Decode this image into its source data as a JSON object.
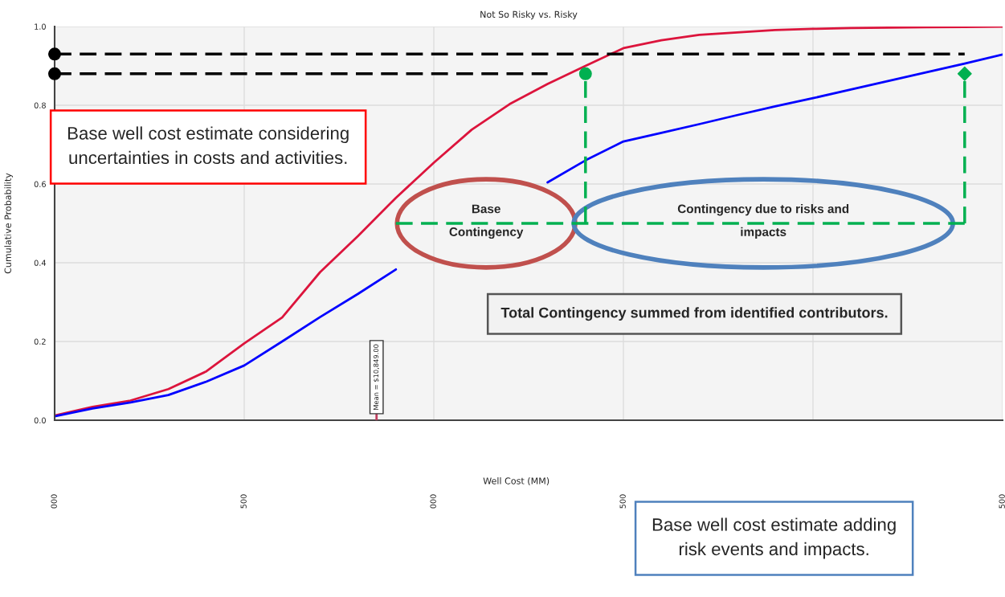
{
  "chart_data": {
    "type": "line",
    "title": "Not So Risky vs. Risky",
    "xlabel": "Well Cost (MM)",
    "ylabel": "Cumulative Probability",
    "categories": [
      "000",
      null,
      null,
      null,
      null,
      "500",
      null,
      null,
      null,
      null,
      "000",
      null,
      null,
      null,
      null,
      "500",
      null,
      null,
      null,
      null,
      null,
      null,
      null,
      null,
      null,
      "500"
    ],
    "ylim": [
      0,
      1
    ],
    "yticks": [
      {
        "value": 0,
        "label": "0.0"
      },
      {
        "value": 0.2,
        "label": "0.2"
      },
      {
        "value": 0.4,
        "label": "0.4"
      },
      {
        "value": 0.6,
        "label": "0.6"
      },
      {
        "value": 0.8,
        "label": "0.8"
      },
      {
        "value": 1,
        "label": "1.0"
      }
    ],
    "grid": true,
    "line_style": "solid",
    "marker": "none",
    "series": [
      {
        "color": "#dc143c",
        "values": [
          0.012,
          0.034,
          0.05,
          0.079,
          0.124,
          0.195,
          0.261,
          0.376,
          0.468,
          0.565,
          0.654,
          0.738,
          0.803,
          0.854,
          0.9,
          0.945,
          0.965,
          0.979,
          0.985,
          0.991,
          0.994,
          0.996,
          0.997,
          0.998,
          0.999,
          1.0
        ]
      },
      {
        "color": "#0000ff",
        "values": [
          0.01,
          0.03,
          0.045,
          0.064,
          0.098,
          0.139,
          0.2,
          0.262,
          0.321,
          0.383,
          null,
          null,
          null,
          0.604,
          0.66,
          0.708,
          0.73,
          0.752,
          0.775,
          0.797,
          0.818,
          0.84,
          0.862,
          0.884,
          0.906,
          0.929
        ]
      },
      {
        "type": "scatter",
        "color": "#000000",
        "marker": "circle",
        "values": [
          0.93,
          null,
          null,
          null,
          null,
          null,
          null,
          null,
          null,
          null,
          null,
          null,
          null,
          null,
          null,
          null,
          null,
          null,
          null,
          null,
          null,
          null,
          null,
          null,
          null,
          null
        ]
      },
      {
        "type": "scatter",
        "color": "#000000",
        "marker": "circle",
        "values": [
          0.88,
          null,
          null,
          null,
          null,
          null,
          null,
          null,
          null,
          null,
          null,
          null,
          null,
          null,
          null,
          null,
          null,
          null,
          null,
          null,
          null,
          null,
          null,
          null,
          null,
          null
        ]
      },
      {
        "color": "#000000",
        "line_style": "dashed",
        "marker": "none",
        "values": [
          0.93,
          0.93,
          0.93,
          0.93,
          0.93,
          0.93,
          0.93,
          0.93,
          0.93,
          0.93,
          0.93,
          0.93,
          0.93,
          0.93,
          0.93,
          0.93,
          0.93,
          0.93,
          0.93,
          0.93,
          0.93,
          0.93,
          0.93,
          0.93,
          0.93,
          null
        ]
      },
      {
        "color": "#000000",
        "line_style": "dashed",
        "marker": "none",
        "values": [
          0.88,
          0.88,
          0.88,
          0.88,
          0.88,
          0.88,
          0.88,
          0.88,
          0.88,
          0.88,
          0.88,
          0.88,
          0.88,
          0.88,
          null,
          null,
          null,
          null,
          null,
          null,
          null,
          null,
          null,
          null,
          null,
          null
        ]
      },
      {
        "color": "#00b050",
        "line_style": "dashed",
        "marker": "none",
        "values": [
          null,
          null,
          null,
          null,
          null,
          null,
          null,
          null,
          null,
          0.5,
          0.5,
          0.5,
          0.5,
          0.5,
          0.5,
          0.5,
          0.5,
          0.5,
          0.5,
          0.5,
          0.5,
          0.5,
          0.5,
          0.5,
          0.5,
          null
        ]
      },
      {
        "type": "scatter",
        "color": "#00b050",
        "marker": "circle",
        "values": [
          null,
          null,
          null,
          null,
          null,
          null,
          null,
          null,
          null,
          null,
          null,
          null,
          null,
          null,
          0.88,
          null,
          null,
          null,
          null,
          null,
          null,
          null,
          null,
          null,
          null,
          null
        ],
        "errors": [
          null,
          null,
          null,
          null,
          null,
          null,
          null,
          null,
          null,
          null,
          null,
          null,
          null,
          null,
          [
            0.5,
            0.88
          ],
          null,
          null,
          null,
          null,
          null,
          null,
          null,
          null,
          null,
          null,
          null
        ]
      },
      {
        "type": "scatter",
        "color": "#00b050",
        "marker": "diamond",
        "values": [
          null,
          null,
          null,
          null,
          null,
          null,
          null,
          null,
          null,
          null,
          null,
          null,
          null,
          null,
          null,
          null,
          null,
          null,
          null,
          null,
          null,
          null,
          null,
          null,
          0.88,
          null
        ],
        "errors": [
          null,
          null,
          null,
          null,
          null,
          null,
          null,
          null,
          null,
          null,
          null,
          null,
          null,
          null,
          null,
          null,
          null,
          null,
          null,
          null,
          null,
          null,
          null,
          null,
          [
            0.5,
            0.88
          ],
          null
        ]
      }
    ],
    "annotations": [
      "Base well cost estimate considering uncertainties in costs and activities.",
      "Total Contingency summed from identified contributors.",
      "Base well cost estimate adding risk events and impacts.",
      "Base Contingency",
      "Contingency due to risks and impacts",
      "Mean = $10,849.00"
    ]
  }
}
